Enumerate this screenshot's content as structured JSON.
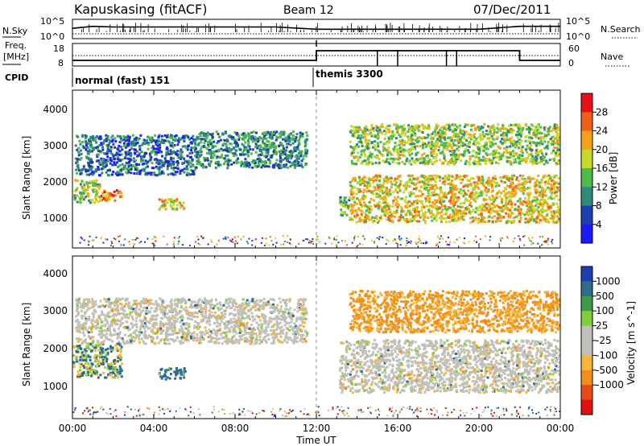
{
  "header": {
    "station": "Kapuskasing (fitACF)",
    "beam": "Beam 12",
    "date": "07/Dec/2011"
  },
  "sky_panel": {
    "left_label": "N.Sky",
    "right_label": "N.Search",
    "left_ticks": [
      "10^5",
      "10^0"
    ],
    "right_ticks": [
      "10^5",
      "10^0"
    ]
  },
  "freq_panel": {
    "left_label_1": "Freq.",
    "left_label_2": "[MHz]",
    "right_label": "Nave",
    "left_ticks": [
      "18",
      "8"
    ],
    "right_ticks": [
      "60",
      "0"
    ]
  },
  "cpid": {
    "label": "CPID",
    "modes": [
      {
        "name": "normal (fast) 151",
        "start_ut": 0,
        "end_ut": 12
      },
      {
        "name": "themis 3300",
        "start_ut": 12,
        "end_ut": 24
      }
    ]
  },
  "x_axis": {
    "label": "Time UT",
    "ticks": [
      "00:00",
      "04:00",
      "08:00",
      "12:00",
      "16:00",
      "20:00",
      "00:00"
    ]
  },
  "power_panel": {
    "ylabel": "Slant Range [km]",
    "yticks": [
      "1000",
      "2000",
      "3000",
      "4000"
    ],
    "colorbar_label": "Power [dB]",
    "colorbar_ticks": [
      "4",
      "8",
      "12",
      "16",
      "20",
      "24",
      "28"
    ],
    "colorbar_colors": [
      "#1a1aff",
      "#1f3fb0",
      "#2f8a7a",
      "#4dbb4a",
      "#c8d82b",
      "#f4a21a",
      "#f06018",
      "#e8101a"
    ]
  },
  "velocity_panel": {
    "ylabel": "Slant Range [km]",
    "yticks": [
      "1000",
      "2000",
      "3000",
      "4000"
    ],
    "colorbar_label": "Velocity [m s^-1]",
    "colorbar_ticks": [
      "1000",
      "500",
      "100",
      "25",
      "-25",
      "-100",
      "-500",
      "-1000"
    ],
    "colorbar_colors": [
      "#1f3fb0",
      "#2e6e8c",
      "#3d9a4a",
      "#7fcf3a",
      "#c0c0b8",
      "#c0c0b8",
      "#f5b63a",
      "#f0901a",
      "#e84a18",
      "#e01010"
    ],
    "ground_scatter_color": "#c0c0b8"
  },
  "chart_data": [
    {
      "type": "line",
      "title": "Kapuskasing (fitACF) Beam 12 07/Dec/2011",
      "xlabel": "Time UT",
      "x_range_hours": [
        0,
        24
      ],
      "series": [
        {
          "name": "N.Sky",
          "x": [
            0,
            1,
            2,
            4,
            6,
            8,
            10,
            12,
            14,
            16,
            18,
            20,
            22,
            23,
            24
          ],
          "values": [
            1000,
            5000,
            3000,
            3000,
            3000,
            3000,
            3000,
            500,
            500,
            500,
            500,
            500,
            5000,
            5000,
            5000
          ]
        },
        {
          "name": "N.Search",
          "x": [
            0,
            12,
            24
          ],
          "values": [
            1,
            1,
            1
          ]
        }
      ]
    },
    {
      "type": "line",
      "xlabel": "Time UT",
      "series": [
        {
          "name": "Freq.",
          "x": [
            0,
            12,
            12,
            22,
            22,
            24
          ],
          "values": [
            10.5,
            10.5,
            15.5,
            15.5,
            10.5,
            10.5
          ]
        },
        {
          "name": "Nave",
          "x": [
            0,
            12,
            24
          ],
          "values": [
            25,
            25,
            25
          ]
        }
      ]
    },
    {
      "type": "heatmap",
      "title": "Power [dB]",
      "xlabel": "Time UT",
      "ylabel": "Slant Range [km]",
      "xlim": [
        0,
        24
      ],
      "ylim": [
        180,
        4500
      ],
      "color_range": [
        0,
        30
      ],
      "regions": [
        {
          "t": [
            0,
            1.3
          ],
          "range_km": [
            1450,
            2100
          ],
          "value": 16
        },
        {
          "t": [
            1.1,
            2.4
          ],
          "range_km": [
            1500,
            1800
          ],
          "value": 24
        },
        {
          "t": [
            0.1,
            6.0
          ],
          "range_km": [
            2200,
            3300
          ],
          "value": 8
        },
        {
          "t": [
            4.2,
            5.5
          ],
          "range_km": [
            1250,
            1550
          ],
          "value": 20
        },
        {
          "t": [
            6.0,
            11.5
          ],
          "range_km": [
            2400,
            3400
          ],
          "value": 10
        },
        {
          "t": [
            13.1,
            13.6
          ],
          "range_km": [
            1100,
            1600
          ],
          "value": 12
        },
        {
          "t": [
            13.6,
            23.9
          ],
          "range_km": [
            900,
            2200
          ],
          "value": 20
        },
        {
          "t": [
            13.6,
            23.9
          ],
          "range_km": [
            2500,
            3600
          ],
          "value": 16
        }
      ]
    },
    {
      "type": "heatmap",
      "title": "Velocity [m s^-1]",
      "xlabel": "Time UT",
      "ylabel": "Slant Range [km]",
      "xlim": [
        0,
        24
      ],
      "ylim": [
        180,
        4500
      ],
      "regions": [
        {
          "t": [
            0,
            2.4
          ],
          "range_km": [
            1300,
            2200
          ],
          "value": 100
        },
        {
          "t": [
            0.1,
            11.5
          ],
          "range_km": [
            2200,
            3400
          ],
          "value": 0,
          "ground_scatter": true
        },
        {
          "t": [
            4.2,
            5.5
          ],
          "range_km": [
            1250,
            1550
          ],
          "value": 200
        },
        {
          "t": [
            13.1,
            23.9
          ],
          "range_km": [
            900,
            2300
          ],
          "value": 0,
          "ground_scatter": true
        },
        {
          "t": [
            13.6,
            23.9
          ],
          "range_km": [
            2500,
            3600
          ],
          "value": -150
        }
      ]
    }
  ]
}
